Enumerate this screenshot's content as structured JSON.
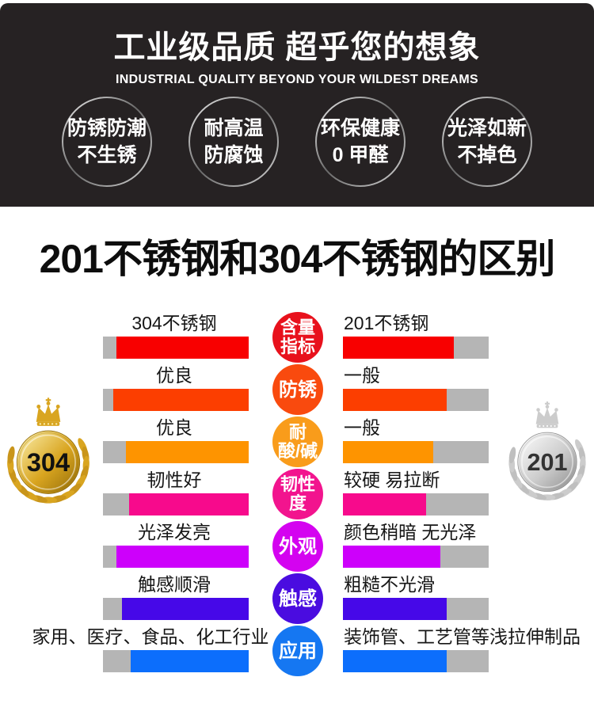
{
  "page": {
    "bg": "#ffffff",
    "dark_bg": "#262223",
    "gray_bar": "#b5b5b5"
  },
  "header": {
    "title": "工业级品质 超乎您的想象",
    "subtitle": "INDUSTRIAL QUALITY BEYOND YOUR WILDEST DREAMS",
    "features": [
      {
        "text": "防锈防潮\n不生锈"
      },
      {
        "text": "耐高温\n防腐蚀"
      },
      {
        "text": "环保健康\n0 甲醛"
      },
      {
        "text": "光泽如新\n不掉色"
      }
    ]
  },
  "section_title": "201不锈钢和304不锈钢的区别",
  "comparison": {
    "left_medal": {
      "label": "304",
      "palette": {
        "light": "#fdf3b3",
        "mid": "#d9a520",
        "dark": "#8f6a08",
        "leaf": "#c9951a",
        "text": "#111111"
      }
    },
    "right_medal": {
      "label": "201",
      "palette": {
        "light": "#ffffff",
        "mid": "#cccccc",
        "dark": "#8d8d8d",
        "leaf": "#bfbfbf",
        "text": "#333333"
      }
    },
    "rows": [
      {
        "indicator": "含量\n指标",
        "circle_color": "#e8111c",
        "bar_color": "#f80000",
        "left_label": "304不锈钢",
        "right_label": "201不锈钢",
        "left_fill": 0.91,
        "right_fill": 0.76
      },
      {
        "indicator": "防锈",
        "circle_color": "#f94a0e",
        "bar_color": "#fc3e00",
        "left_label": "优良",
        "right_label": "一般",
        "left_fill": 0.93,
        "right_fill": 0.71
      },
      {
        "indicator": "耐\n酸/碱",
        "circle_color": "#f99c1b",
        "bar_color": "#fe9400",
        "left_label": "优良",
        "right_label": "一般",
        "left_fill": 0.84,
        "right_fill": 0.62
      },
      {
        "indicator": "韧性\n度",
        "circle_color": "#f2148e",
        "bar_color": "#f70a8c",
        "left_label": "韧性好",
        "right_label": "较硬 易拉断",
        "left_fill": 0.82,
        "right_fill": 0.57
      },
      {
        "indicator": "外观",
        "circle_color": "#d403f0",
        "bar_color": "#cd00fb",
        "left_label": "光泽发亮",
        "right_label": "颜色稍暗 无光泽",
        "left_fill": 0.91,
        "right_fill": 0.67
      },
      {
        "indicator": "触感",
        "circle_color": "#4a0ce0",
        "bar_color": "#4608e8",
        "left_label": "触感顺滑",
        "right_label": "粗糙不光滑",
        "left_fill": 0.87,
        "right_fill": 0.71
      },
      {
        "indicator": "应用",
        "circle_color": "#1577f2",
        "bar_color": "#0c6efc",
        "left_label": "家用、医疗、食品、化工行业",
        "right_label": "装饰管、工艺管等浅拉伸制品",
        "left_fill": 0.81,
        "right_fill": 0.71
      }
    ]
  },
  "chart_data": {
    "type": "bar",
    "orientation": "horizontal",
    "categories": [
      "含量指标",
      "防锈",
      "耐酸/碱",
      "韧性度",
      "外观",
      "触感",
      "应用"
    ],
    "series": [
      {
        "name": "304不锈钢",
        "values": [
          0.91,
          0.93,
          0.84,
          0.82,
          0.91,
          0.87,
          0.81
        ],
        "value_labels": [
          "304不锈钢",
          "优良",
          "优良",
          "韧性好",
          "光泽发亮",
          "触感顺滑",
          "家用、医疗、食品、化工行业"
        ]
      },
      {
        "name": "201不锈钢",
        "values": [
          0.76,
          0.71,
          0.62,
          0.57,
          0.67,
          0.71,
          0.71
        ],
        "value_labels": [
          "201不锈钢",
          "一般",
          "一般",
          "较硬 易拉断",
          "颜色稍暗 无光泽",
          "粗糙不光滑",
          "装饰管、工艺管等浅拉伸制品"
        ]
      }
    ],
    "title": "201不锈钢和304不锈钢的区别",
    "ylim": [
      0,
      1
    ]
  }
}
